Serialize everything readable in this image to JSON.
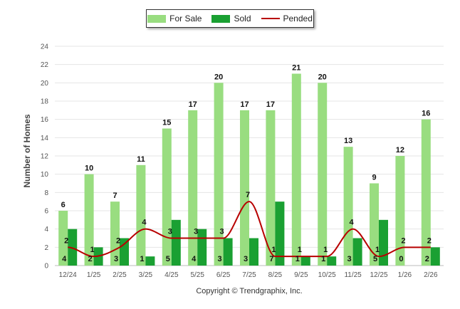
{
  "chart_data": {
    "type": "bar",
    "title": "",
    "xlabel": "",
    "ylabel": "Number of Homes",
    "ylim": [
      0,
      24
    ],
    "yticks": [
      0,
      2,
      4,
      6,
      8,
      10,
      12,
      14,
      16,
      18,
      20,
      22,
      24
    ],
    "grid": true,
    "legend_position": "top-center",
    "categories": [
      "12/24",
      "1/25",
      "2/25",
      "3/25",
      "4/25",
      "5/25",
      "6/25",
      "7/25",
      "8/25",
      "9/25",
      "10/25",
      "11/25",
      "12/25",
      "1/26",
      "2/26"
    ],
    "series": [
      {
        "name": "For Sale",
        "type": "bar",
        "color": "#99dd80",
        "values": [
          6,
          10,
          7,
          11,
          15,
          17,
          20,
          17,
          17,
          21,
          20,
          13,
          9,
          12,
          16
        ]
      },
      {
        "name": "Sold",
        "type": "bar",
        "color": "#1aa032",
        "values": [
          4,
          2,
          3,
          1,
          5,
          4,
          3,
          3,
          7,
          1,
          1,
          3,
          5,
          0,
          2
        ]
      },
      {
        "name": "Pended",
        "type": "line",
        "color": "#b80000",
        "values": [
          2,
          1,
          2,
          4,
          3,
          3,
          3,
          7,
          1,
          1,
          1,
          4,
          1,
          2,
          2
        ]
      }
    ]
  },
  "footer": {
    "copyright": "Copyright © Trendgraphix, Inc."
  }
}
